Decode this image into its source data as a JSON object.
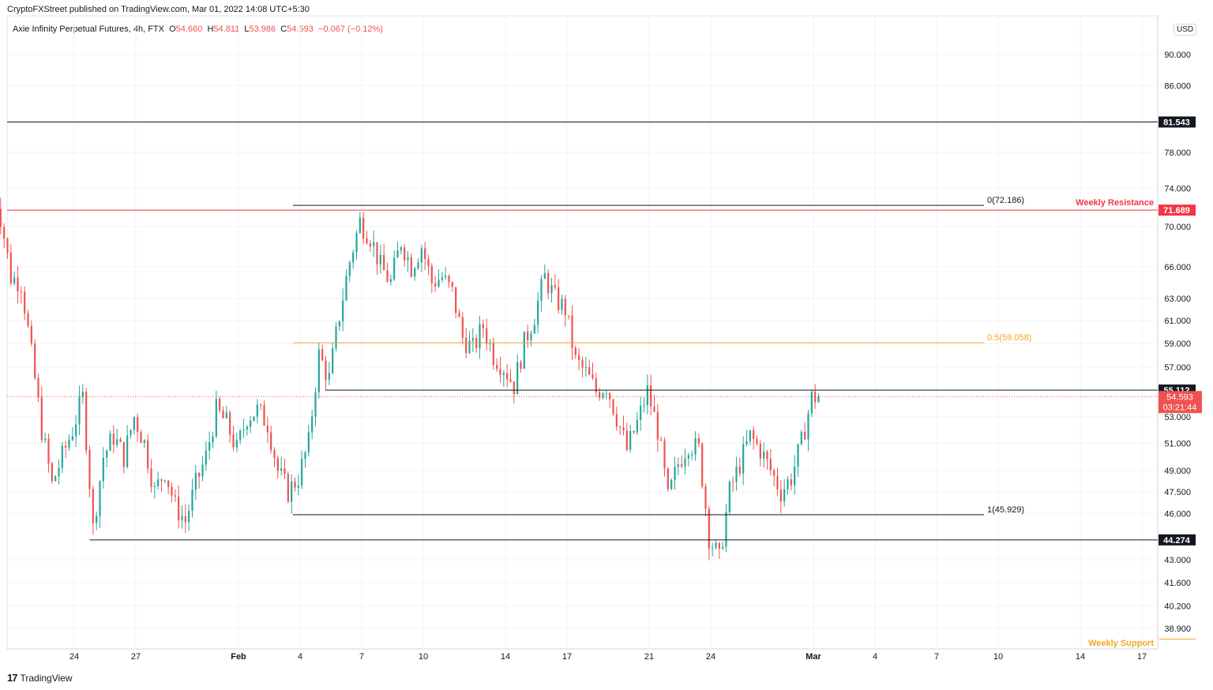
{
  "publisher": "CryptoFXStreet published on TradingView.com, Mar 01, 2022 14:08 UTC+5:30",
  "legend": {
    "title": "Axie Infinity Perpetual Futures, 4h, FTX",
    "o_label": "O",
    "o": "54.660",
    "h_label": "H",
    "h": "54.811",
    "l_label": "L",
    "l": "53.986",
    "c_label": "C",
    "c": "54.593",
    "change": "−0.067 (−0.12%)"
  },
  "currency": "USD",
  "footer": "TradingView",
  "colors": {
    "up": "#26a69a",
    "down": "#ef5350",
    "resistance": "#f23645",
    "fib_mid": "#f5a623",
    "black_line": "#131722",
    "grid": "#f0f3fa"
  },
  "chart_data": {
    "type": "candlestick",
    "symbol": "Axie Infinity Perpetual Futures",
    "timeframe": "4h",
    "exchange": "FTX",
    "y_scale": "log",
    "y_ticks": [
      "90.000",
      "86.000",
      "78.000",
      "74.000",
      "70.000",
      "66.000",
      "63.000",
      "61.000",
      "59.000",
      "57.000",
      "53.000",
      "51.000",
      "49.000",
      "47.500",
      "46.000",
      "43.000",
      "41.600",
      "40.200",
      "38.900"
    ],
    "y_tick_values": [
      90,
      86,
      78,
      74,
      70,
      66,
      63,
      61,
      59,
      57,
      53,
      51,
      49,
      47.5,
      46,
      43,
      41.6,
      40.2,
      38.9
    ],
    "x_ticks": [
      "24",
      "27",
      "Feb",
      "4",
      "7",
      "10",
      "14",
      "17",
      "21",
      "24",
      "Mar",
      "4",
      "7",
      "10",
      "14",
      "17"
    ],
    "x_tick_dates": [
      "2022-01-24",
      "2022-01-27",
      "2022-02-01",
      "2022-02-04",
      "2022-02-07",
      "2022-02-10",
      "2022-02-14",
      "2022-02-17",
      "2022-02-21",
      "2022-02-24",
      "2022-03-01",
      "2022-03-04",
      "2022-03-07",
      "2022-03-10",
      "2022-03-14",
      "2022-03-17"
    ],
    "last_price": {
      "value": 54.593,
      "label": "54.593",
      "countdown": "03:21:44"
    },
    "horizontal_levels": [
      {
        "value": 81.543,
        "label": "81.543",
        "color": "black"
      },
      {
        "value": 71.689,
        "label": "71.689",
        "color": "red",
        "name": "Weekly Resistance"
      },
      {
        "value": 55.112,
        "label": "55.112",
        "color": "black"
      },
      {
        "value": 44.274,
        "label": "44.274",
        "color": "black"
      },
      {
        "value": 38.3,
        "label": "",
        "color": "orange",
        "name": "Weekly Support"
      }
    ],
    "fib_levels": [
      {
        "ratio_label": "0(72.186)",
        "value": 72.186
      },
      {
        "ratio_label": "0.5(59.058)",
        "value": 59.058
      },
      {
        "ratio_label": "1(45.929)",
        "value": 45.929
      }
    ],
    "price_path": [
      [
        "2022-01-20 00:00",
        75.5
      ],
      [
        "2022-01-20 12:00",
        71.0
      ],
      [
        "2022-01-21 00:00",
        65.0
      ],
      [
        "2022-01-21 12:00",
        64.5
      ],
      [
        "2022-01-22 00:00",
        58.0
      ],
      [
        "2022-01-22 12:00",
        52.0
      ],
      [
        "2022-01-23 00:00",
        48.0
      ],
      [
        "2022-01-23 12:00",
        50.0
      ],
      [
        "2022-01-24 00:00",
        52.0
      ],
      [
        "2022-01-24 12:00",
        54.5
      ],
      [
        "2022-01-25 00:00",
        45.0
      ],
      [
        "2022-01-25 12:00",
        50.0
      ],
      [
        "2022-01-26 00:00",
        51.5
      ],
      [
        "2022-01-26 12:00",
        50.0
      ],
      [
        "2022-01-27 00:00",
        53.0
      ],
      [
        "2022-01-27 12:00",
        51.0
      ],
      [
        "2022-01-28 00:00",
        47.5
      ],
      [
        "2022-01-28 12:00",
        49.0
      ],
      [
        "2022-01-29 00:00",
        46.5
      ],
      [
        "2022-01-29 12:00",
        45.5
      ],
      [
        "2022-01-30 00:00",
        48.0
      ],
      [
        "2022-01-30 12:00",
        50.0
      ],
      [
        "2022-01-31 00:00",
        53.5
      ],
      [
        "2022-01-31 12:00",
        52.5
      ],
      [
        "2022-02-01 00:00",
        50.5
      ],
      [
        "2022-02-01 12:00",
        53.0
      ],
      [
        "2022-02-02 00:00",
        53.5
      ],
      [
        "2022-02-02 12:00",
        52.5
      ],
      [
        "2022-02-03 00:00",
        49.0
      ],
      [
        "2022-02-03 12:00",
        47.5
      ],
      [
        "2022-02-04 00:00",
        48.5
      ],
      [
        "2022-02-04 12:00",
        51.0
      ],
      [
        "2022-02-05 00:00",
        58.0
      ],
      [
        "2022-02-05 12:00",
        56.0
      ],
      [
        "2022-02-06 00:00",
        61.5
      ],
      [
        "2022-02-06 12:00",
        66.5
      ],
      [
        "2022-02-07 00:00",
        70.5
      ],
      [
        "2022-02-07 12:00",
        69.0
      ],
      [
        "2022-02-08 00:00",
        66.0
      ],
      [
        "2022-02-08 12:00",
        64.5
      ],
      [
        "2022-02-09 00:00",
        68.5
      ],
      [
        "2022-02-09 12:00",
        66.0
      ],
      [
        "2022-02-10 00:00",
        68.0
      ],
      [
        "2022-02-10 12:00",
        64.5
      ],
      [
        "2022-02-11 00:00",
        65.0
      ],
      [
        "2022-02-11 12:00",
        63.5
      ],
      [
        "2022-02-12 00:00",
        59.5
      ],
      [
        "2022-02-12 12:00",
        58.5
      ],
      [
        "2022-02-13 00:00",
        60.5
      ],
      [
        "2022-02-13 12:00",
        58.0
      ],
      [
        "2022-02-14 00:00",
        57.0
      ],
      [
        "2022-02-14 12:00",
        55.5
      ],
      [
        "2022-02-15 00:00",
        59.0
      ],
      [
        "2022-02-15 12:00",
        61.5
      ],
      [
        "2022-02-16 00:00",
        65.0
      ],
      [
        "2022-02-16 12:00",
        63.0
      ],
      [
        "2022-02-17 00:00",
        62.0
      ],
      [
        "2022-02-17 12:00",
        57.5
      ],
      [
        "2022-02-18 00:00",
        56.5
      ],
      [
        "2022-02-18 12:00",
        55.0
      ],
      [
        "2022-02-19 00:00",
        55.5
      ],
      [
        "2022-02-19 12:00",
        53.0
      ],
      [
        "2022-02-20 00:00",
        50.5
      ],
      [
        "2022-02-20 12:00",
        52.5
      ],
      [
        "2022-02-21 00:00",
        55.0
      ],
      [
        "2022-02-21 12:00",
        52.0
      ],
      [
        "2022-02-22 00:00",
        47.0
      ],
      [
        "2022-02-22 12:00",
        49.5
      ],
      [
        "2022-02-23 00:00",
        51.0
      ],
      [
        "2022-02-23 12:00",
        50.5
      ],
      [
        "2022-02-24 00:00",
        44.5
      ],
      [
        "2022-02-24 12:00",
        43.0
      ],
      [
        "2022-02-25 00:00",
        47.5
      ],
      [
        "2022-02-25 12:00",
        49.5
      ],
      [
        "2022-02-26 00:00",
        51.5
      ],
      [
        "2022-02-26 12:00",
        50.5
      ],
      [
        "2022-02-27 00:00",
        49.0
      ],
      [
        "2022-02-27 12:00",
        47.5
      ],
      [
        "2022-02-28 00:00",
        48.5
      ],
      [
        "2022-02-28 12:00",
        51.0
      ],
      [
        "2022-03-01 00:00",
        54.5
      ],
      [
        "2022-03-01 08:00",
        54.593
      ]
    ]
  }
}
